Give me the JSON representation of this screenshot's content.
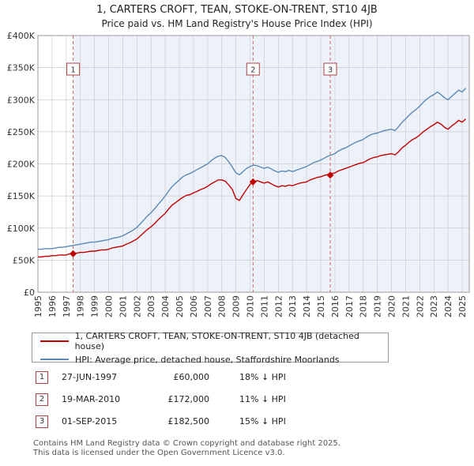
{
  "title": "1, CARTERS CROFT, TEAN, STOKE-ON-TRENT, ST10 4JB",
  "subtitle": "Price paid vs. HM Land Registry's House Price Index (HPI)",
  "chart_data": {
    "type": "line",
    "x_domain": [
      1995,
      2025.5
    ],
    "y_domain": [
      0,
      400
    ],
    "y_unit": "GBP thousands",
    "grid": true,
    "y_ticks": [
      {
        "v": 0,
        "label": "£0"
      },
      {
        "v": 50,
        "label": "£50K"
      },
      {
        "v": 100,
        "label": "£100K"
      },
      {
        "v": 150,
        "label": "£150K"
      },
      {
        "v": 200,
        "label": "£200K"
      },
      {
        "v": 250,
        "label": "£250K"
      },
      {
        "v": 300,
        "label": "£300K"
      },
      {
        "v": 350,
        "label": "£350K"
      },
      {
        "v": 400,
        "label": "£400K"
      }
    ],
    "x_ticks": [
      1995,
      1996,
      1997,
      1998,
      1999,
      2000,
      2001,
      2002,
      2003,
      2004,
      2005,
      2006,
      2007,
      2008,
      2009,
      2010,
      2011,
      2012,
      2013,
      2014,
      2015,
      2016,
      2017,
      2018,
      2019,
      2020,
      2021,
      2022,
      2023,
      2024,
      2025
    ],
    "shade_from": 1997.49,
    "colors": {
      "price_paid": "#c00000",
      "hpi": "#5d89b4",
      "sale_line": "#cc6666",
      "shade": "#edf2fa",
      "grid": "#cccccc",
      "border": "#999999"
    },
    "sale_lines_x": [
      1997.49,
      2010.21,
      2015.67
    ],
    "markers": [
      {
        "label": "1",
        "x": 1997.49,
        "v": 60
      },
      {
        "label": "2",
        "x": 2010.21,
        "v": 172
      },
      {
        "label": "3",
        "x": 2015.67,
        "v": 182.5
      }
    ],
    "series": [
      {
        "name": "price-paid",
        "color": "#c00000",
        "x_start": 1995.0,
        "x_step": 0.25,
        "values_gbp_k": [
          55,
          55,
          56,
          56,
          57,
          57,
          58,
          58,
          58,
          60,
          60,
          61,
          62,
          62,
          63,
          64,
          64,
          65,
          66,
          66,
          67,
          69,
          70,
          71,
          72,
          75,
          77,
          80,
          83,
          88,
          93,
          98,
          102,
          107,
          113,
          118,
          123,
          130,
          136,
          140,
          144,
          148,
          151,
          152,
          155,
          157,
          160,
          162,
          165,
          169,
          172,
          175,
          175,
          173,
          167,
          160,
          146,
          143,
          152,
          160,
          168,
          172,
          174,
          172,
          170,
          172,
          169,
          166,
          164,
          166,
          165,
          167,
          166,
          168,
          170,
          171,
          172,
          175,
          177,
          179,
          180,
          182,
          183.5,
          185,
          186,
          189,
          191,
          193,
          195,
          197,
          199,
          201,
          202,
          205,
          208,
          210,
          211,
          213,
          214,
          215,
          216,
          214,
          219,
          225,
          229,
          234,
          238,
          241,
          245,
          250,
          254,
          258,
          261,
          265,
          262,
          257,
          254,
          259,
          263,
          268,
          265,
          270
        ]
      },
      {
        "name": "hpi",
        "color": "#5d89b4",
        "x_start": 1995.0,
        "x_step": 0.25,
        "values_gbp_k": [
          67,
          67,
          68,
          68,
          68,
          69,
          70,
          70,
          71,
          72,
          73,
          74,
          75,
          76,
          77,
          78,
          78,
          79,
          80,
          81,
          82,
          84,
          85,
          86,
          88,
          91,
          94,
          97,
          101,
          107,
          113,
          119,
          124,
          130,
          137,
          143,
          150,
          158,
          165,
          170,
          175,
          180,
          183,
          185,
          188,
          191,
          194,
          197,
          200,
          205,
          209,
          212,
          213,
          210,
          203,
          195,
          186,
          183,
          188,
          193,
          196,
          198,
          197,
          195,
          193,
          195,
          192,
          189,
          187,
          189,
          188,
          190,
          188,
          190,
          192,
          194,
          196,
          199,
          202,
          204,
          206,
          209,
          212,
          214,
          216,
          220,
          223,
          225,
          228,
          231,
          234,
          236,
          238,
          242,
          245,
          247,
          248,
          250,
          252,
          253,
          254,
          252,
          258,
          265,
          270,
          276,
          281,
          285,
          290,
          296,
          301,
          305,
          308,
          312,
          308,
          303,
          300,
          305,
          310,
          315,
          312,
          318
        ]
      }
    ]
  },
  "legend": [
    {
      "label": "1, CARTERS CROFT, TEAN, STOKE-ON-TRENT, ST10 4JB (detached house)",
      "color": "#c00000"
    },
    {
      "label": "HPI: Average price, detached house, Staffordshire Moorlands",
      "color": "#5d89b4"
    }
  ],
  "sales": [
    {
      "num": "1",
      "date": "27-JUN-1997",
      "price": "£60,000",
      "hpi": "18% ↓ HPI"
    },
    {
      "num": "2",
      "date": "19-MAR-2010",
      "price": "£172,000",
      "hpi": "11% ↓ HPI"
    },
    {
      "num": "3",
      "date": "01-SEP-2015",
      "price": "£182,500",
      "hpi": "15% ↓ HPI"
    }
  ],
  "footer": [
    "Contains HM Land Registry data © Crown copyright and database right 2025.",
    "This data is licensed under the Open Government Licence v3.0."
  ]
}
